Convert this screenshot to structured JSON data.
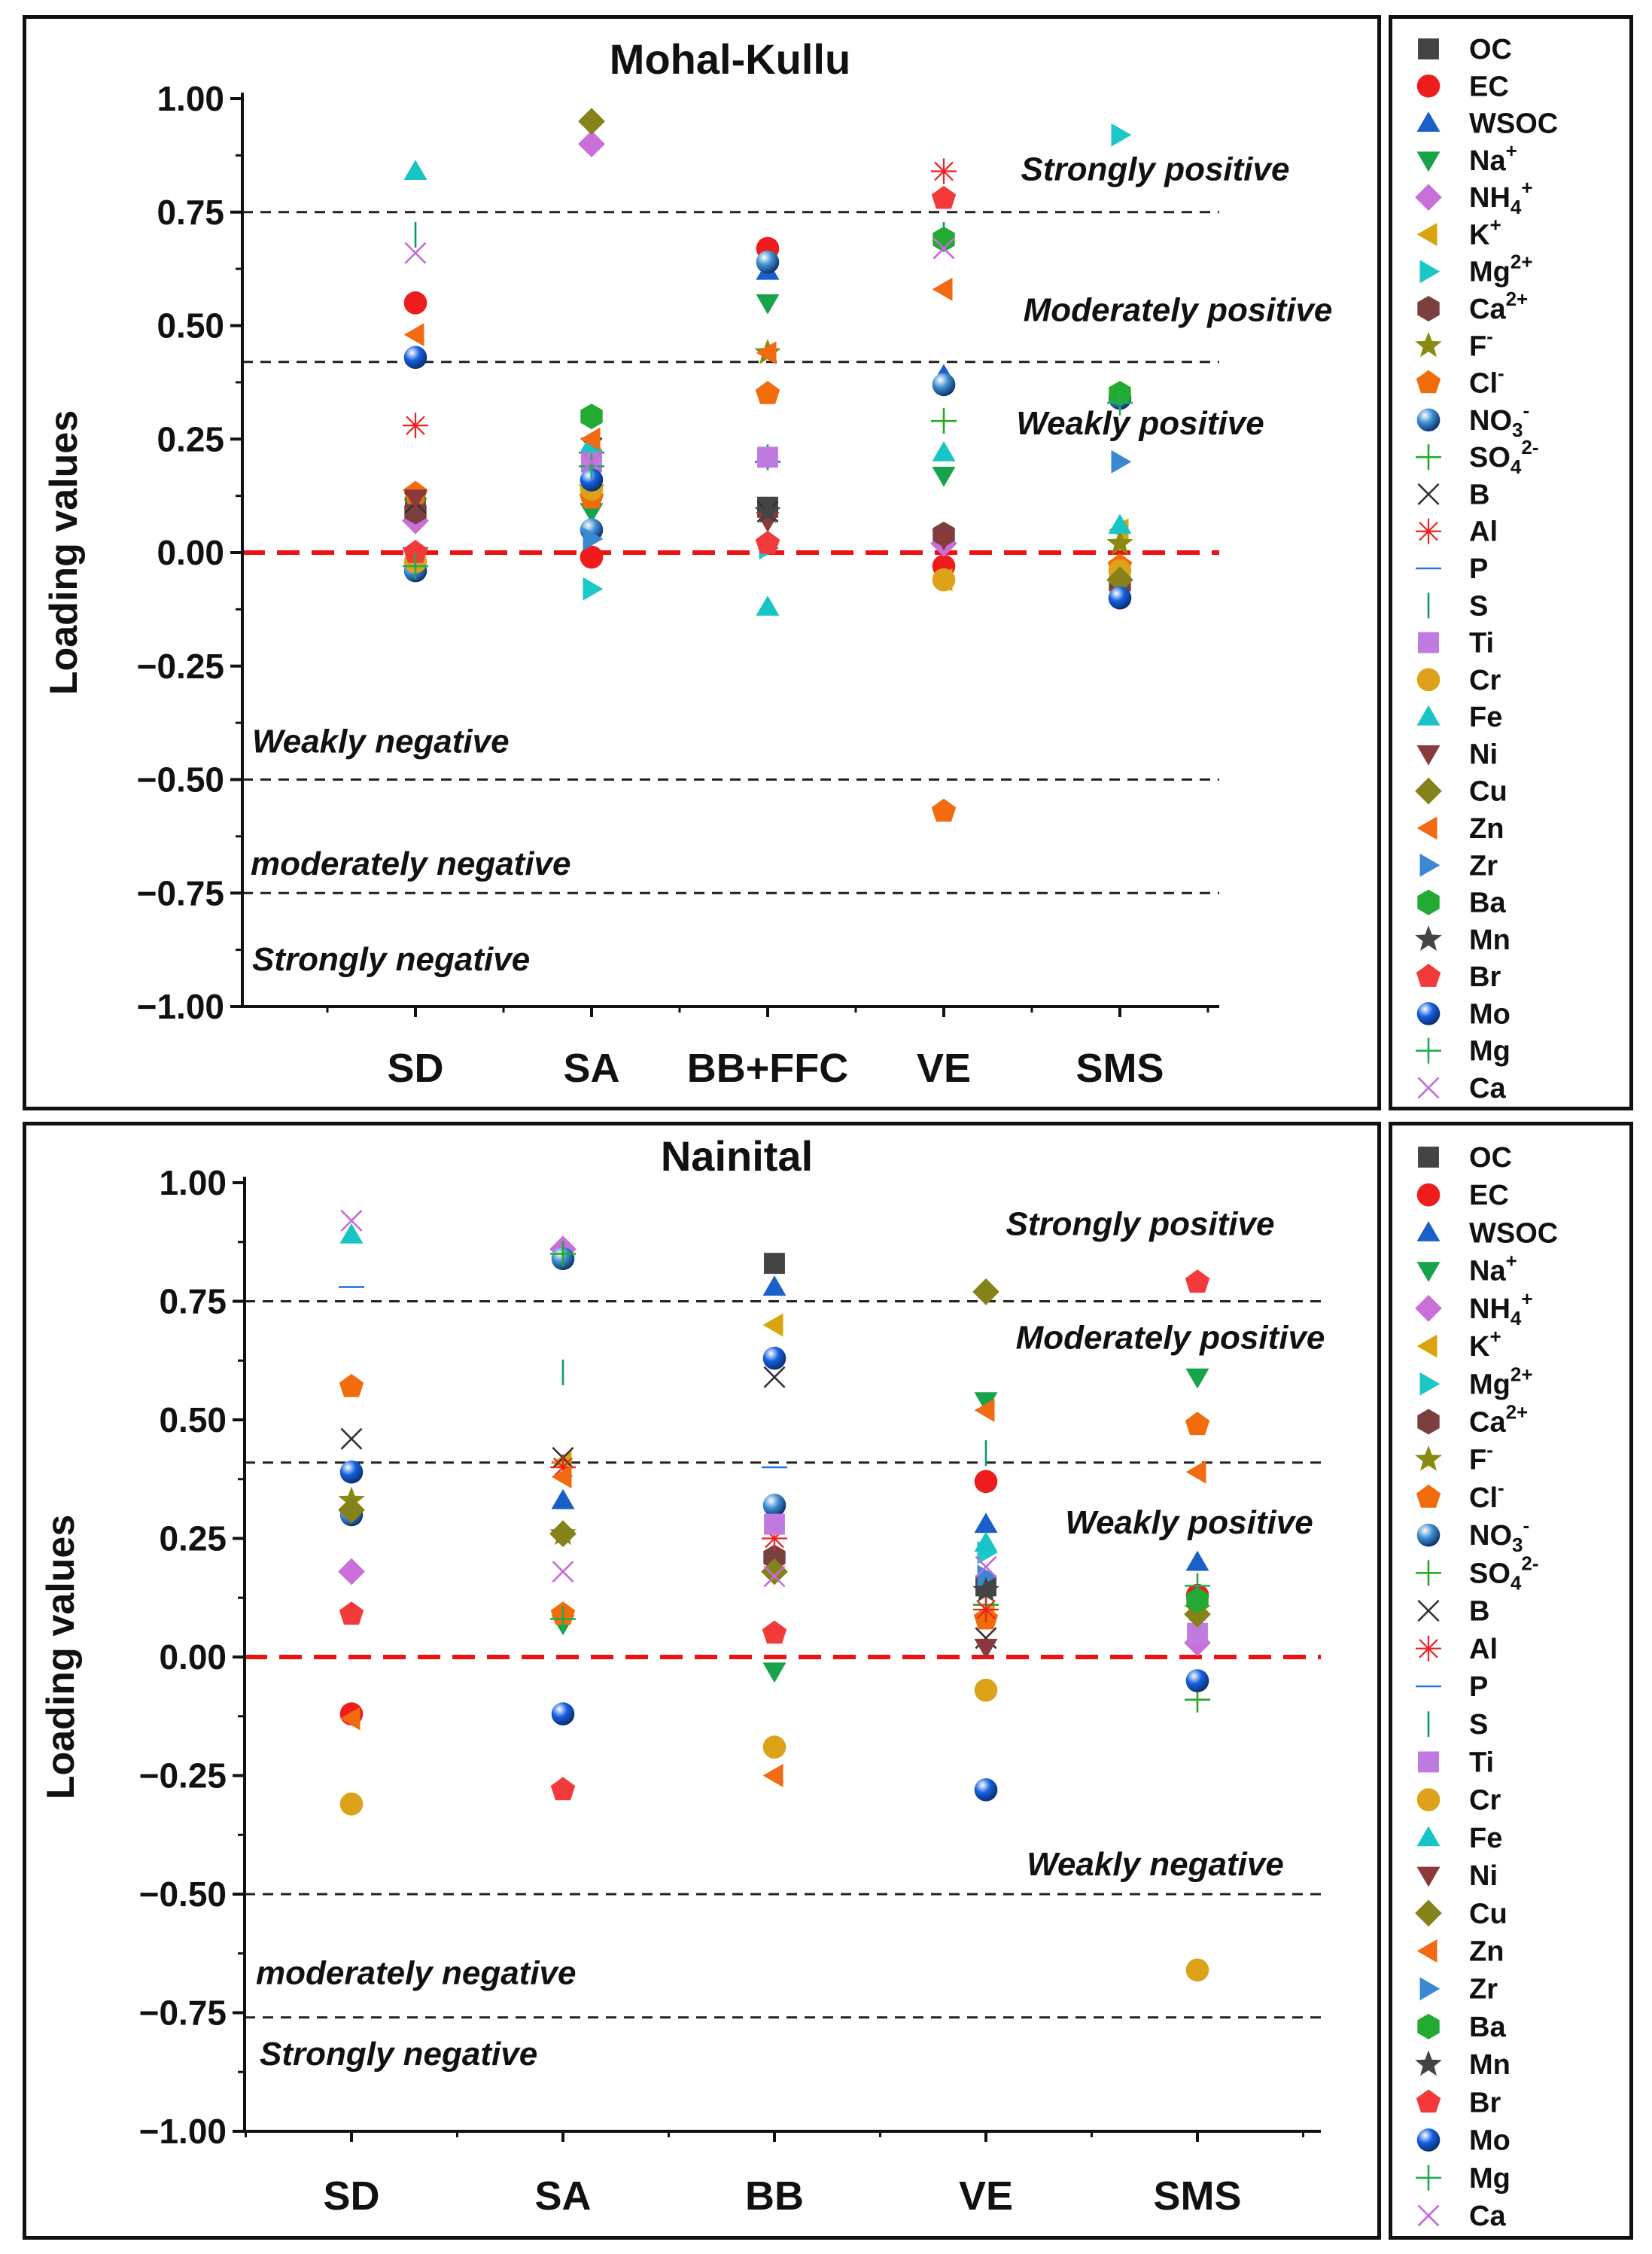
{
  "chart_data": [
    {
      "type": "scatter",
      "title": "Mohal-Kullu",
      "ylabel": "Loading values",
      "xlabel": "",
      "ylim": [
        -1.0,
        1.0
      ],
      "yticks": [
        "1.00",
        "0.75",
        "0.50",
        "0.25",
        "0.00",
        "−0.25",
        "−0.50",
        "−0.75",
        "−1.00"
      ],
      "categories": [
        "SD",
        "SA",
        "BB+FFC",
        "VE",
        "SMS"
      ],
      "threshold_lines": [
        0.75,
        0.42,
        -0.5,
        -0.75
      ],
      "zero_line": 0.0,
      "zone_labels": [
        "Strongly positive",
        "Moderately positive",
        "Weakly positive",
        "Weakly negative",
        "moderately negative",
        "Strongly negative"
      ],
      "points": [
        {
          "s": "OC",
          "c": 0,
          "v": 0.1
        },
        {
          "s": "OC",
          "c": 2,
          "v": 0.1
        },
        {
          "s": "OC",
          "c": 4,
          "v": -0.05
        },
        {
          "s": "EC",
          "c": 0,
          "v": 0.55
        },
        {
          "s": "EC",
          "c": 1,
          "v": -0.01
        },
        {
          "s": "EC",
          "c": 2,
          "v": 0.67
        },
        {
          "s": "EC",
          "c": 3,
          "v": -0.03
        },
        {
          "s": "WSOC",
          "c": 2,
          "v": 0.62
        },
        {
          "s": "WSOC",
          "c": 3,
          "v": 0.39
        },
        {
          "s": "Na+",
          "c": 0,
          "v": 0.1
        },
        {
          "s": "Na+",
          "c": 1,
          "v": 0.09
        },
        {
          "s": "Na+",
          "c": 2,
          "v": 0.55
        },
        {
          "s": "Na+",
          "c": 3,
          "v": 0.17
        },
        {
          "s": "NH4+",
          "c": 0,
          "v": 0.07
        },
        {
          "s": "NH4+",
          "c": 1,
          "v": 0.9
        },
        {
          "s": "NH4+",
          "c": 3,
          "v": 0.02
        },
        {
          "s": "K+",
          "c": 1,
          "v": 0.19
        },
        {
          "s": "K+",
          "c": 3,
          "v": -0.06
        },
        {
          "s": "K+",
          "c": 4,
          "v": 0.05
        },
        {
          "s": "Mg2+",
          "c": 1,
          "v": -0.08
        },
        {
          "s": "Mg2+",
          "c": 2,
          "v": 0.01
        },
        {
          "s": "Mg2+",
          "c": 4,
          "v": 0.92
        },
        {
          "s": "Ca2+",
          "c": 0,
          "v": 0.09
        },
        {
          "s": "Ca2+",
          "c": 3,
          "v": 0.04
        },
        {
          "s": "Ca2+",
          "c": 4,
          "v": -0.07
        },
        {
          "s": "F-",
          "c": 1,
          "v": 0.14
        },
        {
          "s": "F-",
          "c": 2,
          "v": 0.44
        },
        {
          "s": "F-",
          "c": 4,
          "v": 0.02
        },
        {
          "s": "Cl-",
          "c": 0,
          "v": 0.13
        },
        {
          "s": "Cl-",
          "c": 1,
          "v": 0.12
        },
        {
          "s": "Cl-",
          "c": 2,
          "v": 0.35
        },
        {
          "s": "Cl-",
          "c": 3,
          "v": -0.57
        },
        {
          "s": "Cl-",
          "c": 4,
          "v": -0.03
        },
        {
          "s": "NO3-",
          "c": 0,
          "v": -0.04
        },
        {
          "s": "NO3-",
          "c": 1,
          "v": 0.05
        },
        {
          "s": "NO3-",
          "c": 2,
          "v": 0.64
        },
        {
          "s": "NO3-",
          "c": 3,
          "v": 0.37
        },
        {
          "s": "NO3-",
          "c": 4,
          "v": 0.34
        },
        {
          "s": "SO42-",
          "c": 1,
          "v": 0.22
        },
        {
          "s": "SO42-",
          "c": 3,
          "v": 0.29
        },
        {
          "s": "B",
          "c": 0,
          "v": 0.11
        },
        {
          "s": "B",
          "c": 1,
          "v": 0.23
        },
        {
          "s": "B",
          "c": 2,
          "v": 0.09
        },
        {
          "s": "Al",
          "c": 0,
          "v": 0.28
        },
        {
          "s": "Al",
          "c": 3,
          "v": 0.84
        },
        {
          "s": "P",
          "c": 0,
          "v": 0.01
        },
        {
          "s": "P",
          "c": 2,
          "v": 0.2
        },
        {
          "s": "S",
          "c": 0,
          "v": 0.7
        },
        {
          "s": "S",
          "c": 2,
          "v": 0.21
        },
        {
          "s": "S",
          "c": 3,
          "v": 0.7
        },
        {
          "s": "Ti",
          "c": 1,
          "v": 0.2
        },
        {
          "s": "Ti",
          "c": 2,
          "v": 0.21
        },
        {
          "s": "Cr",
          "c": 0,
          "v": -0.02
        },
        {
          "s": "Cr",
          "c": 1,
          "v": 0.14
        },
        {
          "s": "Cr",
          "c": 3,
          "v": -0.06
        },
        {
          "s": "Cr",
          "c": 4,
          "v": -0.04
        },
        {
          "s": "Fe",
          "c": 0,
          "v": 0.84
        },
        {
          "s": "Fe",
          "c": 1,
          "v": 0.24
        },
        {
          "s": "Fe",
          "c": 2,
          "v": -0.12
        },
        {
          "s": "Fe",
          "c": 3,
          "v": 0.22
        },
        {
          "s": "Fe",
          "c": 4,
          "v": 0.06
        },
        {
          "s": "Ni",
          "c": 0,
          "v": 0.12
        },
        {
          "s": "Ni",
          "c": 2,
          "v": 0.07
        },
        {
          "s": "Ni",
          "c": 3,
          "v": 0.03
        },
        {
          "s": "Cu",
          "c": 1,
          "v": 0.95
        },
        {
          "s": "Cu",
          "c": 4,
          "v": -0.06
        },
        {
          "s": "Zn",
          "c": 0,
          "v": 0.48
        },
        {
          "s": "Zn",
          "c": 1,
          "v": 0.25
        },
        {
          "s": "Zn",
          "c": 2,
          "v": 0.44
        },
        {
          "s": "Zn",
          "c": 3,
          "v": 0.58
        },
        {
          "s": "Zr",
          "c": 1,
          "v": 0.03
        },
        {
          "s": "Zr",
          "c": 4,
          "v": 0.2
        },
        {
          "s": "Ba",
          "c": 1,
          "v": 0.3
        },
        {
          "s": "Ba",
          "c": 3,
          "v": 0.69
        },
        {
          "s": "Ba",
          "c": 4,
          "v": 0.35
        },
        {
          "s": "Mn",
          "c": 2,
          "v": 0.09
        },
        {
          "s": "Br",
          "c": 0,
          "v": 0.0
        },
        {
          "s": "Br",
          "c": 2,
          "v": 0.02
        },
        {
          "s": "Br",
          "c": 3,
          "v": 0.78
        },
        {
          "s": "Mo",
          "c": 0,
          "v": 0.43
        },
        {
          "s": "Mo",
          "c": 1,
          "v": 0.16
        },
        {
          "s": "Mo",
          "c": 4,
          "v": -0.1
        },
        {
          "s": "Mg",
          "c": 0,
          "v": -0.03
        },
        {
          "s": "Mg",
          "c": 1,
          "v": 0.19
        },
        {
          "s": "Mg",
          "c": 4,
          "v": 0.33
        },
        {
          "s": "Ca",
          "c": 0,
          "v": 0.66
        },
        {
          "s": "Ca",
          "c": 1,
          "v": 0.2
        },
        {
          "s": "Ca",
          "c": 3,
          "v": 0.67
        }
      ]
    },
    {
      "type": "scatter",
      "title": "Nainital",
      "ylabel": "Loading values",
      "xlabel": "",
      "ylim": [
        -1.0,
        1.0
      ],
      "yticks": [
        "1.00",
        "0.75",
        "0.50",
        "0.25",
        "0.00",
        "−0.25",
        "−0.50",
        "−0.75",
        "−1.00"
      ],
      "categories": [
        "SD",
        "SA",
        "BB",
        "VE",
        "SMS"
      ],
      "threshold_lines": [
        0.75,
        0.41,
        -0.5,
        -0.76
      ],
      "zero_line": 0.0,
      "zone_labels": [
        "Strongly positive",
        "Moderately positive",
        "Weakly positive",
        "Weakly negative",
        "moderately negative",
        "Strongly negative"
      ],
      "points": [
        {
          "s": "OC",
          "c": 2,
          "v": 0.83
        },
        {
          "s": "OC",
          "c": 3,
          "v": 0.15
        },
        {
          "s": "EC",
          "c": 0,
          "v": -0.12
        },
        {
          "s": "EC",
          "c": 3,
          "v": 0.37
        },
        {
          "s": "EC",
          "c": 4,
          "v": 0.13
        },
        {
          "s": "WSOC",
          "c": 1,
          "v": 0.33
        },
        {
          "s": "WSOC",
          "c": 2,
          "v": 0.78
        },
        {
          "s": "WSOC",
          "c": 3,
          "v": 0.28
        },
        {
          "s": "WSOC",
          "c": 4,
          "v": 0.2
        },
        {
          "s": "Na+",
          "c": 1,
          "v": 0.07
        },
        {
          "s": "Na+",
          "c": 2,
          "v": -0.03
        },
        {
          "s": "Na+",
          "c": 3,
          "v": 0.54
        },
        {
          "s": "Na+",
          "c": 4,
          "v": 0.59
        },
        {
          "s": "NH4+",
          "c": 0,
          "v": 0.18
        },
        {
          "s": "NH4+",
          "c": 1,
          "v": 0.86
        },
        {
          "s": "NH4+",
          "c": 4,
          "v": 0.03
        },
        {
          "s": "K+",
          "c": 1,
          "v": 0.41
        },
        {
          "s": "K+",
          "c": 2,
          "v": 0.7
        },
        {
          "s": "K+",
          "c": 3,
          "v": 0.09
        },
        {
          "s": "Mg2+",
          "c": 3,
          "v": 0.22
        },
        {
          "s": "Ca2+",
          "c": 2,
          "v": 0.21
        },
        {
          "s": "F-",
          "c": 0,
          "v": 0.33
        },
        {
          "s": "F-",
          "c": 1,
          "v": 0.26
        },
        {
          "s": "F-",
          "c": 4,
          "v": 0.1
        },
        {
          "s": "Cl-",
          "c": 0,
          "v": 0.57
        },
        {
          "s": "Cl-",
          "c": 1,
          "v": 0.09
        },
        {
          "s": "Cl-",
          "c": 3,
          "v": 0.08
        },
        {
          "s": "Cl-",
          "c": 4,
          "v": 0.49
        },
        {
          "s": "NO3-",
          "c": 0,
          "v": 0.3
        },
        {
          "s": "NO3-",
          "c": 1,
          "v": 0.84
        },
        {
          "s": "NO3-",
          "c": 2,
          "v": 0.32
        },
        {
          "s": "SO42-",
          "c": 1,
          "v": 0.85
        },
        {
          "s": "SO42-",
          "c": 3,
          "v": 0.11
        },
        {
          "s": "SO42-",
          "c": 4,
          "v": -0.09
        },
        {
          "s": "B",
          "c": 0,
          "v": 0.46
        },
        {
          "s": "B",
          "c": 1,
          "v": 0.42
        },
        {
          "s": "B",
          "c": 2,
          "v": 0.59
        },
        {
          "s": "B",
          "c": 3,
          "v": 0.04
        },
        {
          "s": "Al",
          "c": 1,
          "v": 0.4
        },
        {
          "s": "Al",
          "c": 2,
          "v": 0.25
        },
        {
          "s": "Al",
          "c": 3,
          "v": 0.1
        },
        {
          "s": "P",
          "c": 0,
          "v": 0.78
        },
        {
          "s": "P",
          "c": 2,
          "v": 0.4
        },
        {
          "s": "S",
          "c": 1,
          "v": 0.6
        },
        {
          "s": "S",
          "c": 3,
          "v": 0.43
        },
        {
          "s": "Ti",
          "c": 2,
          "v": 0.28
        },
        {
          "s": "Ti",
          "c": 4,
          "v": 0.05
        },
        {
          "s": "Cr",
          "c": 0,
          "v": -0.31
        },
        {
          "s": "Cr",
          "c": 2,
          "v": -0.19
        },
        {
          "s": "Cr",
          "c": 3,
          "v": -0.07
        },
        {
          "s": "Cr",
          "c": 4,
          "v": -0.66
        },
        {
          "s": "Fe",
          "c": 0,
          "v": 0.89
        },
        {
          "s": "Fe",
          "c": 3,
          "v": 0.24
        },
        {
          "s": "Ni",
          "c": 3,
          "v": 0.02
        },
        {
          "s": "Cu",
          "c": 0,
          "v": 0.31
        },
        {
          "s": "Cu",
          "c": 1,
          "v": 0.26
        },
        {
          "s": "Cu",
          "c": 2,
          "v": 0.18
        },
        {
          "s": "Cu",
          "c": 3,
          "v": 0.77
        },
        {
          "s": "Cu",
          "c": 4,
          "v": 0.09
        },
        {
          "s": "Zn",
          "c": 0,
          "v": -0.13
        },
        {
          "s": "Zn",
          "c": 1,
          "v": 0.38
        },
        {
          "s": "Zn",
          "c": 2,
          "v": -0.25
        },
        {
          "s": "Zn",
          "c": 3,
          "v": 0.52
        },
        {
          "s": "Zn",
          "c": 4,
          "v": 0.39
        },
        {
          "s": "Zr",
          "c": 3,
          "v": 0.17
        },
        {
          "s": "Ba",
          "c": 4,
          "v": 0.12
        },
        {
          "s": "Mn",
          "c": 3,
          "v": 0.14
        },
        {
          "s": "Br",
          "c": 0,
          "v": 0.09
        },
        {
          "s": "Br",
          "c": 1,
          "v": -0.28
        },
        {
          "s": "Br",
          "c": 2,
          "v": 0.05
        },
        {
          "s": "Br",
          "c": 4,
          "v": 0.79
        },
        {
          "s": "Mo",
          "c": 0,
          "v": 0.39
        },
        {
          "s": "Mo",
          "c": 1,
          "v": -0.12
        },
        {
          "s": "Mo",
          "c": 2,
          "v": 0.63
        },
        {
          "s": "Mo",
          "c": 3,
          "v": -0.28
        },
        {
          "s": "Mo",
          "c": 4,
          "v": -0.05
        },
        {
          "s": "Mg",
          "c": 1,
          "v": 0.08
        },
        {
          "s": "Mg",
          "c": 4,
          "v": 0.15
        },
        {
          "s": "Ca",
          "c": 0,
          "v": 0.92
        },
        {
          "s": "Ca",
          "c": 1,
          "v": 0.18
        },
        {
          "s": "Ca",
          "c": 2,
          "v": 0.17
        },
        {
          "s": "Ca",
          "c": 3,
          "v": 0.19
        }
      ]
    }
  ],
  "legend": [
    {
      "id": "OC",
      "label": "OC",
      "sup": "",
      "sub": "",
      "marker": "square",
      "color": "#444444"
    },
    {
      "id": "EC",
      "label": "EC",
      "sup": "",
      "sub": "",
      "marker": "circle",
      "color": "#ee1c1c"
    },
    {
      "id": "WSOC",
      "label": "WSOC",
      "sup": "",
      "sub": "",
      "marker": "triangle-up",
      "color": "#1a5fc8"
    },
    {
      "id": "Na+",
      "label": "Na",
      "sup": "+",
      "sub": "",
      "marker": "triangle-down",
      "color": "#16a34a"
    },
    {
      "id": "NH4+",
      "label": "NH",
      "sup": "+",
      "sub": "4",
      "marker": "diamond",
      "color": "#c86fd9"
    },
    {
      "id": "K+",
      "label": "K",
      "sup": "+",
      "sub": "",
      "marker": "triangle-left",
      "color": "#d9a40e"
    },
    {
      "id": "Mg2+",
      "label": "Mg",
      "sup": "2+",
      "sub": "",
      "marker": "triangle-right",
      "color": "#1cc7c7"
    },
    {
      "id": "Ca2+",
      "label": "Ca",
      "sup": "2+",
      "sub": "",
      "marker": "hexagon",
      "color": "#7a4040"
    },
    {
      "id": "F-",
      "label": "F",
      "sup": "-",
      "sub": "",
      "marker": "star",
      "color": "#8a8a10"
    },
    {
      "id": "Cl-",
      "label": "Cl",
      "sup": "-",
      "sub": "",
      "marker": "pentagon",
      "color": "#f26c0d"
    },
    {
      "id": "NO3-",
      "label": "NO",
      "sup": "-",
      "sub": "3",
      "marker": "sphere",
      "color": "#3f8fd0"
    },
    {
      "id": "SO42-",
      "label": "SO",
      "sup": "2-",
      "sub": "4",
      "marker": "plus",
      "color": "#22aa22"
    },
    {
      "id": "B",
      "label": "B",
      "sup": "",
      "sub": "",
      "marker": "x",
      "color": "#333333"
    },
    {
      "id": "Al",
      "label": "Al",
      "sup": "",
      "sub": "",
      "marker": "asterisk",
      "color": "#ee2222"
    },
    {
      "id": "P",
      "label": "P",
      "sup": "",
      "sub": "",
      "marker": "hline",
      "color": "#2277dd"
    },
    {
      "id": "S",
      "label": "S",
      "sup": "",
      "sub": "",
      "marker": "vline",
      "color": "#119966"
    },
    {
      "id": "Ti",
      "label": "Ti",
      "sup": "",
      "sub": "",
      "marker": "square",
      "color": "#c07be0"
    },
    {
      "id": "Cr",
      "label": "Cr",
      "sup": "",
      "sub": "",
      "marker": "circle",
      "color": "#dba21a"
    },
    {
      "id": "Fe",
      "label": "Fe",
      "sup": "",
      "sub": "",
      "marker": "triangle-up",
      "color": "#19c4c4"
    },
    {
      "id": "Ni",
      "label": "Ni",
      "sup": "",
      "sub": "",
      "marker": "triangle-down",
      "color": "#8a3a3a"
    },
    {
      "id": "Cu",
      "label": "Cu",
      "sup": "",
      "sub": "",
      "marker": "diamond",
      "color": "#86821a"
    },
    {
      "id": "Zn",
      "label": "Zn",
      "sup": "",
      "sub": "",
      "marker": "triangle-left",
      "color": "#f26a12"
    },
    {
      "id": "Zr",
      "label": "Zr",
      "sup": "",
      "sub": "",
      "marker": "triangle-right",
      "color": "#3a88d0"
    },
    {
      "id": "Ba",
      "label": "Ba",
      "sup": "",
      "sub": "",
      "marker": "hexagon",
      "color": "#22aa33"
    },
    {
      "id": "Mn",
      "label": "Mn",
      "sup": "",
      "sub": "",
      "marker": "star",
      "color": "#444444"
    },
    {
      "id": "Br",
      "label": "Br",
      "sup": "",
      "sub": "",
      "marker": "pentagon",
      "color": "#f23a3a"
    },
    {
      "id": "Mo",
      "label": "Mo",
      "sup": "",
      "sub": "",
      "marker": "sphere",
      "color": "#1560e0"
    },
    {
      "id": "Mg",
      "label": "Mg",
      "sup": "",
      "sub": "",
      "marker": "plus",
      "color": "#22aa55"
    },
    {
      "id": "Ca",
      "label": "Ca",
      "sup": "",
      "sub": "",
      "marker": "x",
      "color": "#c76ad8"
    }
  ]
}
